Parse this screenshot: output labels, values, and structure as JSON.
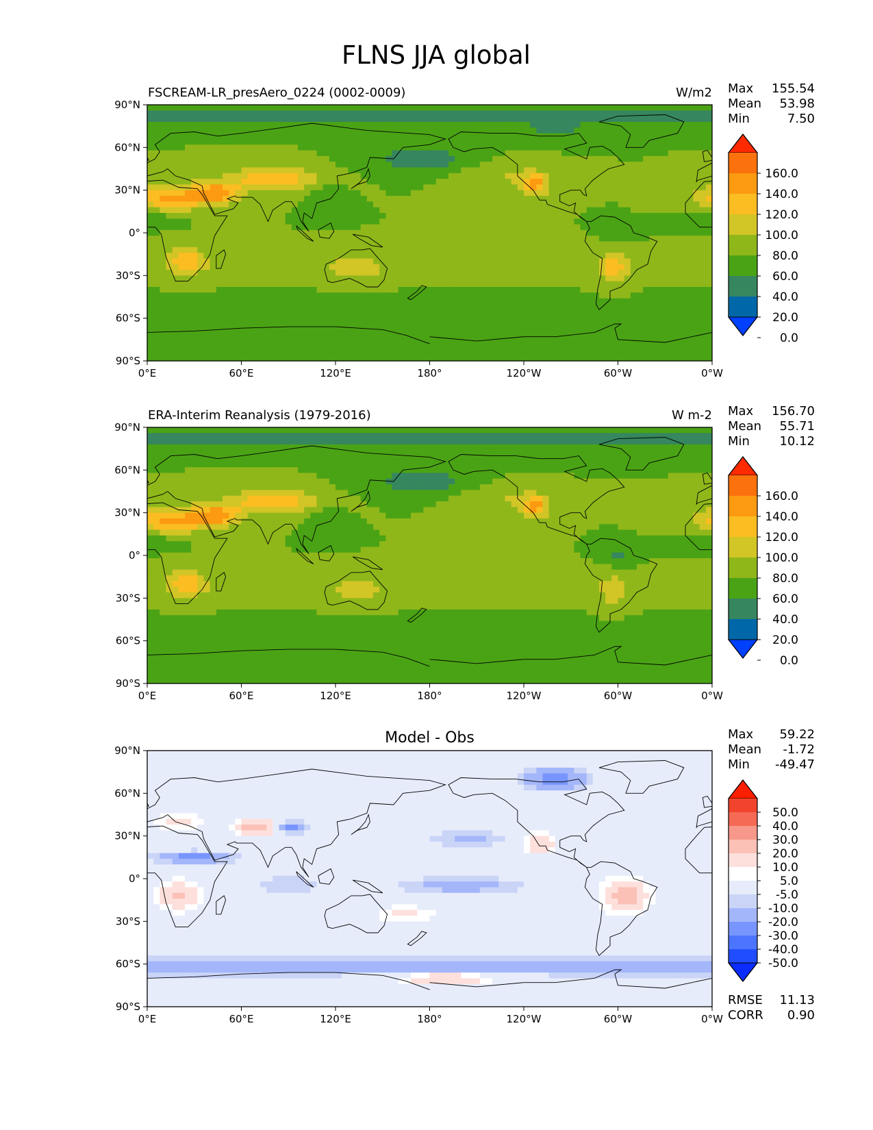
{
  "figure_title": "FLNS JJA global",
  "chart_data": [
    {
      "type": "heatmap",
      "panel": "test",
      "title_left": "FSCREAM-LR_presAero_0224 (0002-0009)",
      "title_center": "",
      "title_right": "W/m2",
      "stats": [
        {
          "label": "Max",
          "value": "155.54"
        },
        {
          "label": "Mean",
          "value": "53.98"
        },
        {
          "label": "Min",
          "value": "7.50"
        }
      ],
      "footer_stats": [],
      "x_ticks": [
        "0°E",
        "60°E",
        "120°E",
        "180°",
        "120°W",
        "60°W",
        "0°W"
      ],
      "y_ticks": [
        "90°N",
        "60°N",
        "30°N",
        "0°",
        "30°S",
        "60°S",
        "90°S"
      ],
      "xlim": [
        0,
        360
      ],
      "ylim": [
        -90,
        90
      ],
      "colorbar": {
        "extend": "both",
        "under_color": "#0040ff",
        "over_color": "#ff2a00",
        "labels": [
          "160.0",
          "140.0",
          "120.0",
          "100.0",
          "80.0",
          "60.0",
          "40.0",
          "20.0",
          "0.0"
        ],
        "colors": [
          "#0068a8",
          "#36865f",
          "#4aa315",
          "#8fb71a",
          "#d2c526",
          "#fbbd21",
          "#fc9a11",
          "#fb710d"
        ]
      }
    },
    {
      "type": "heatmap",
      "panel": "reference",
      "title_left": "ERA-Interim Reanalysis (1979-2016)",
      "title_center": "",
      "title_right": "W m-2",
      "stats": [
        {
          "label": "Max",
          "value": "156.70"
        },
        {
          "label": "Mean",
          "value": "55.71"
        },
        {
          "label": "Min",
          "value": "10.12"
        }
      ],
      "footer_stats": [],
      "x_ticks": [
        "0°E",
        "60°E",
        "120°E",
        "180°",
        "120°W",
        "60°W",
        "0°W"
      ],
      "y_ticks": [
        "90°N",
        "60°N",
        "30°N",
        "0°",
        "30°S",
        "60°S",
        "90°S"
      ],
      "xlim": [
        0,
        360
      ],
      "ylim": [
        -90,
        90
      ],
      "colorbar": {
        "extend": "both",
        "under_color": "#0040ff",
        "over_color": "#ff2a00",
        "labels": [
          "160.0",
          "140.0",
          "120.0",
          "100.0",
          "80.0",
          "60.0",
          "40.0",
          "20.0",
          "0.0"
        ],
        "colors": [
          "#0068a8",
          "#36865f",
          "#4aa315",
          "#8fb71a",
          "#d2c526",
          "#fbbd21",
          "#fc9a11",
          "#fb710d"
        ]
      }
    },
    {
      "type": "heatmap",
      "panel": "difference",
      "title_left": "",
      "title_center": "Model - Obs",
      "title_right": "",
      "stats": [
        {
          "label": "Max",
          "value": "59.22"
        },
        {
          "label": "Mean",
          "value": "-1.72"
        },
        {
          "label": "Min",
          "value": "-49.47"
        }
      ],
      "footer_stats": [
        {
          "label": "RMSE",
          "value": "11.13"
        },
        {
          "label": "CORR",
          "value": "0.90"
        }
      ],
      "x_ticks": [
        "0°E",
        "60°E",
        "120°E",
        "180°",
        "120°W",
        "60°W",
        "0°W"
      ],
      "y_ticks": [
        "90°N",
        "60°N",
        "30°N",
        "0°",
        "30°S",
        "60°S",
        "90°S"
      ],
      "xlim": [
        0,
        360
      ],
      "ylim": [
        -90,
        90
      ],
      "colorbar": {
        "extend": "both",
        "under_color": "#0a2cff",
        "over_color": "#ff1e00",
        "labels": [
          "50.0",
          "40.0",
          "30.0",
          "20.0",
          "10.0",
          "5.0",
          "-5.0",
          "-10.0",
          "-20.0",
          "-30.0",
          "-40.0",
          "-50.0"
        ],
        "colors": [
          "#1f4dff",
          "#4b75ff",
          "#7895ff",
          "#a3b6fa",
          "#c9d4f7",
          "#e7ecfb",
          "#ffffff",
          "#fde0dc",
          "#fbc0b6",
          "#f8988a",
          "#f56a55",
          "#f2442d"
        ]
      }
    }
  ]
}
